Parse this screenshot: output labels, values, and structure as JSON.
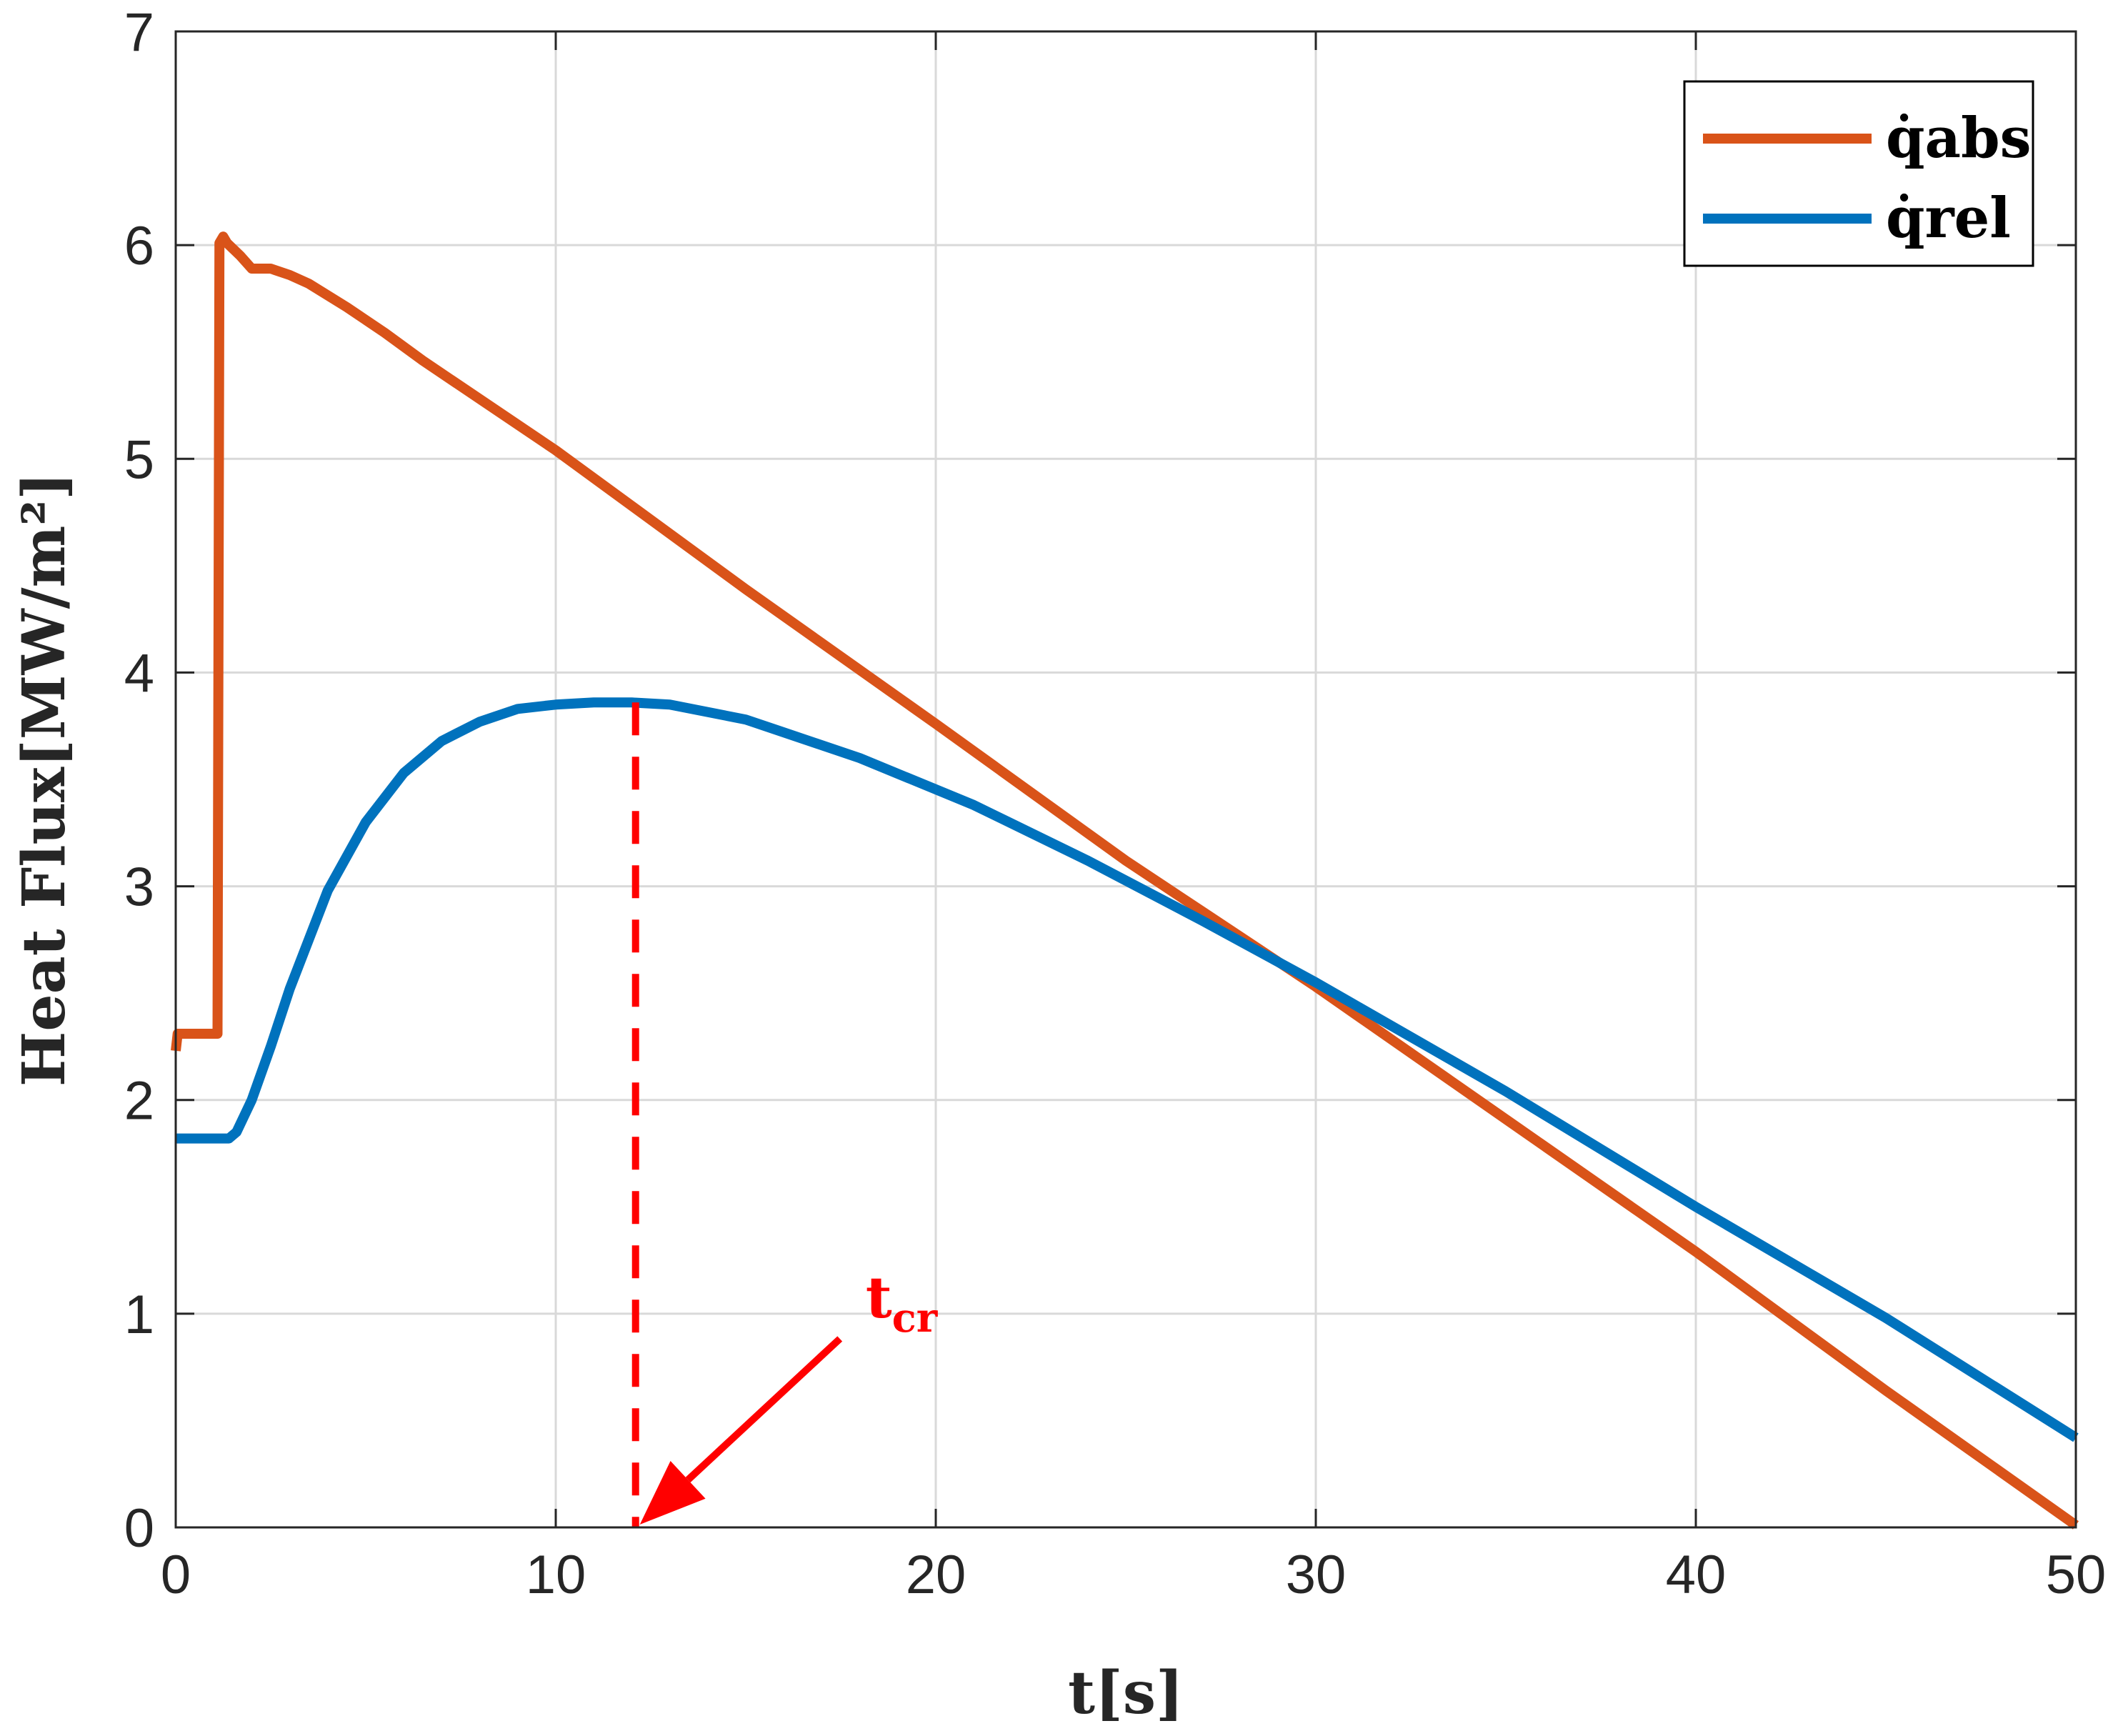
{
  "chart_data": {
    "type": "line",
    "xlabel": "t[s]",
    "ylabel": "Heat Flux[MW/m²]",
    "xlim": [
      0,
      50
    ],
    "ylim": [
      0,
      7
    ],
    "xticks": [
      0,
      10,
      20,
      30,
      40,
      50
    ],
    "yticks": [
      0,
      1,
      2,
      3,
      4,
      5,
      6,
      7
    ],
    "grid": true,
    "legend_position": "top-right",
    "series": [
      {
        "name": "q̇abs",
        "color": "#D95319",
        "x": [
          0,
          0.05,
          1.1,
          1.15,
          1.25,
          1.35,
          1.7,
          2.0,
          2.5,
          3.0,
          3.5,
          4.5,
          5.5,
          6.5,
          10,
          15,
          20,
          25,
          30,
          35,
          40,
          45,
          50
        ],
        "y": [
          2.23,
          2.31,
          2.31,
          6.01,
          6.04,
          6.01,
          5.95,
          5.89,
          5.89,
          5.86,
          5.82,
          5.71,
          5.59,
          5.46,
          5.04,
          4.39,
          3.76,
          3.12,
          2.53,
          1.91,
          1.29,
          0.64,
          0.01
        ]
      },
      {
        "name": "q̇rel",
        "color": "#0072BD",
        "x": [
          0,
          1.0,
          1.4,
          1.6,
          2.0,
          2.5,
          3.0,
          4.0,
          5.0,
          6.0,
          7.0,
          8.0,
          9.0,
          10.0,
          11.0,
          12.0,
          13.0,
          15.0,
          18.0,
          21.0,
          24.0,
          27.0,
          30.0,
          35.0,
          40.0,
          45.0,
          50.0
        ],
        "y": [
          1.82,
          1.82,
          1.82,
          1.85,
          2.0,
          2.25,
          2.52,
          2.98,
          3.3,
          3.53,
          3.68,
          3.77,
          3.83,
          3.85,
          3.86,
          3.86,
          3.85,
          3.78,
          3.6,
          3.38,
          3.12,
          2.84,
          2.55,
          2.04,
          1.5,
          0.98,
          0.42
        ]
      }
    ],
    "annotations": [
      {
        "text": "t",
        "subscript": "cr",
        "color": "#FF0000",
        "vline_x": 12.1,
        "arrow_to": [
          12.1,
          0
        ]
      }
    ]
  }
}
